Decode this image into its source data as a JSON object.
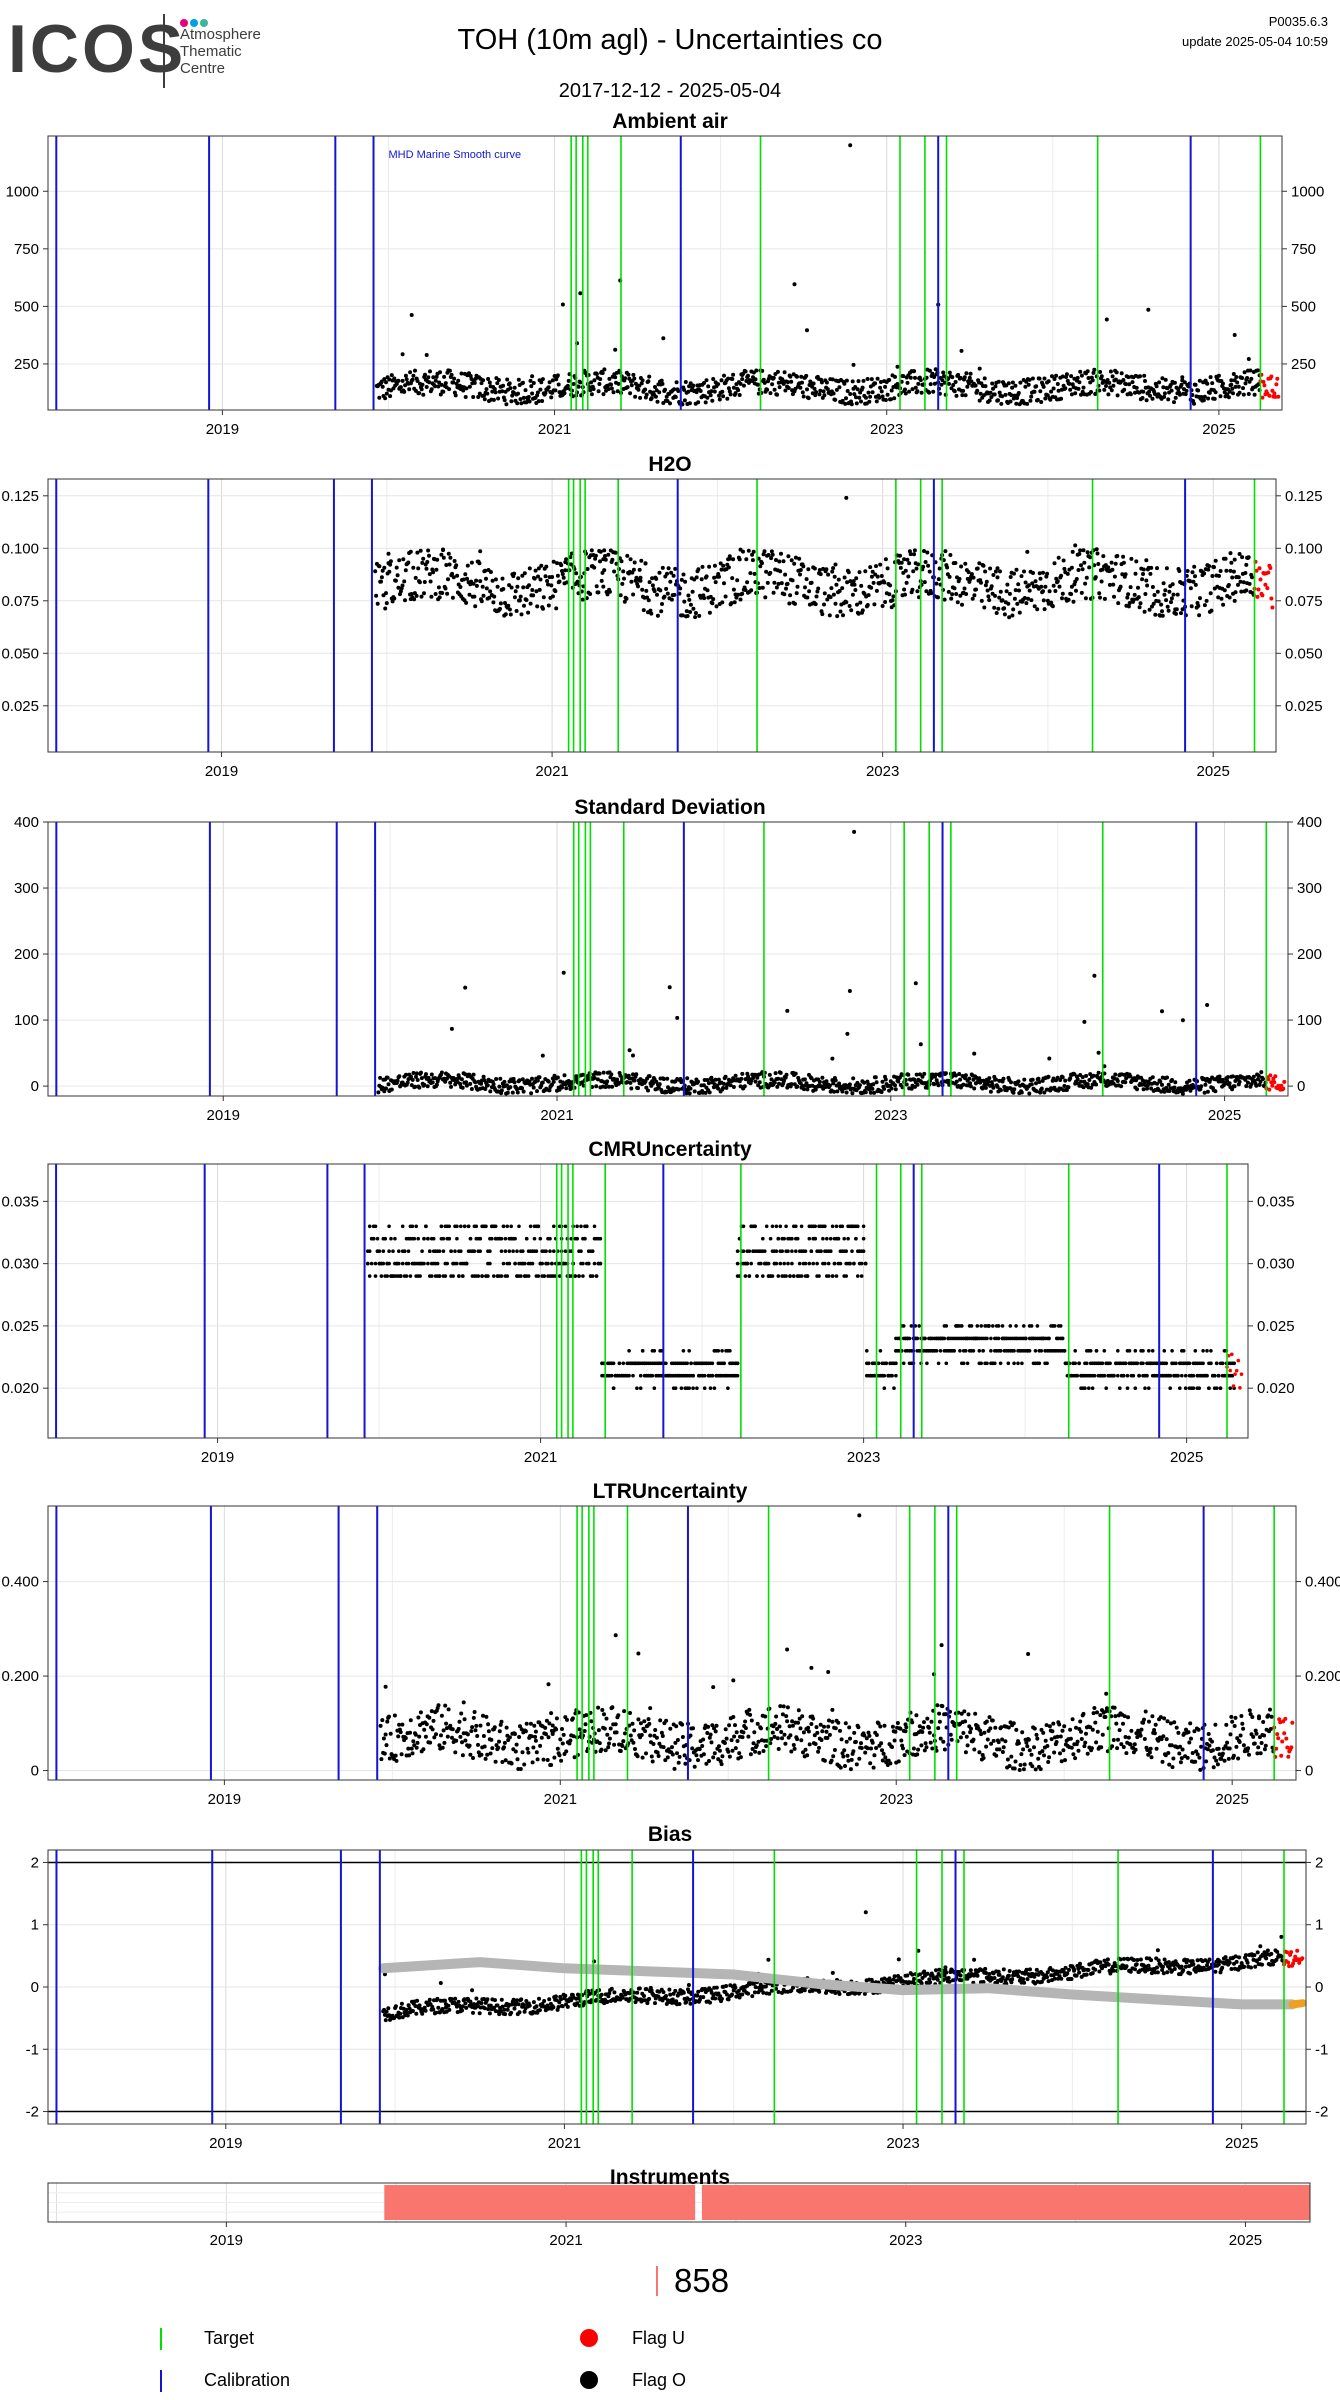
{
  "header": {
    "logo_text": "ICOS",
    "logo_sub": [
      "Atmosphere",
      "Thematic",
      "Centre"
    ],
    "logo_dot_colors": [
      "#e6007e",
      "#00a0e3",
      "#3cb4a0"
    ],
    "title": "TOH  (10m agl) - Uncertainties co",
    "date_range": "2017-12-12 - 2025-05-04",
    "version": "P0035.6.3",
    "update": "update  2025-05-04 10:59"
  },
  "colors": {
    "target": "#00e000",
    "calibration": "#1414d4",
    "flag_u": "#ff0000",
    "flag_o": "#000000",
    "smooth_curve": "#b5b5b5",
    "bias_recent": "#f0a020",
    "instrument_bar": "#f8766d",
    "hline": "#000000"
  },
  "chart_data": [
    {
      "type": "scatter",
      "title": "Ambient air",
      "annotation": "MHD Marine Smooth curve",
      "xlim": [
        2017.95,
        2025.38
      ],
      "xticks": [
        2019,
        2021,
        2023,
        2025
      ],
      "ylim": [
        50,
        1240
      ],
      "yticks": [
        250,
        500,
        750,
        1000
      ],
      "baseline": 150,
      "amplitude": 55,
      "drift": 0,
      "spike_max": 1200
    },
    {
      "type": "scatter",
      "title": "H2O",
      "xlim": [
        2017.95,
        2025.38
      ],
      "xticks": [
        2019,
        2021,
        2023,
        2025
      ],
      "ylim": [
        0.003,
        0.133
      ],
      "yticks": [
        0.025,
        0.05,
        0.075,
        0.1,
        0.125
      ],
      "baseline": 0.083,
      "amplitude": 0.012,
      "drift": 0,
      "spike_max": 0.124
    },
    {
      "type": "scatter",
      "title": "Standard Deviation",
      "xlim": [
        2017.95,
        2025.38
      ],
      "xticks": [
        2019,
        2021,
        2023,
        2025
      ],
      "ylim": [
        -15,
        400
      ],
      "yticks": [
        0,
        100,
        200,
        300,
        400
      ],
      "baseline": 5,
      "amplitude": 12,
      "drift": 0,
      "spike_max": 385
    },
    {
      "type": "scatter",
      "title": "CMRUncertainty",
      "xlim": [
        2017.95,
        2025.38
      ],
      "xticks": [
        2019,
        2021,
        2023,
        2025
      ],
      "ylim": [
        0.016,
        0.038
      ],
      "yticks": [
        0.02,
        0.025,
        0.03,
        0.035
      ],
      "levels": [
        {
          "from": 2019.93,
          "to": 2021.38,
          "center": 0.031,
          "spread": 0.0025
        },
        {
          "from": 2021.38,
          "to": 2022.22,
          "center": 0.0215,
          "spread": 0.0012
        },
        {
          "from": 2022.22,
          "to": 2023.02,
          "center": 0.031,
          "spread": 0.0025
        },
        {
          "from": 2023.02,
          "to": 2023.2,
          "center": 0.0215,
          "spread": 0.0012
        },
        {
          "from": 2023.2,
          "to": 2024.25,
          "center": 0.0235,
          "spread": 0.0015
        },
        {
          "from": 2024.25,
          "to": 2025.3,
          "center": 0.0215,
          "spread": 0.0012
        }
      ]
    },
    {
      "type": "scatter",
      "title": "LTRUncertainty",
      "xlim": [
        2017.95,
        2025.38
      ],
      "xticks": [
        2019,
        2021,
        2023,
        2025
      ],
      "ylim": [
        -0.02,
        0.56
      ],
      "yticks": [
        0.0,
        0.2,
        0.4
      ],
      "baseline": 0.07,
      "amplitude": 0.05,
      "drift": 0,
      "spike_max": 0.54
    },
    {
      "type": "scatter",
      "title": "Bias",
      "xlim": [
        2017.95,
        2025.38
      ],
      "xticks": [
        2019,
        2021,
        2023,
        2025
      ],
      "ylim": [
        -2.2,
        2.2
      ],
      "yticks": [
        -2,
        -1,
        0,
        1,
        2
      ],
      "hlines": [
        2,
        -2
      ],
      "baseline": -0.4,
      "amplitude": 0.12,
      "drift": 0.16,
      "spike_max": 1.2,
      "smooth": [
        [
          2019.93,
          0.3
        ],
        [
          2020.5,
          0.4
        ],
        [
          2021.0,
          0.3
        ],
        [
          2021.5,
          0.25
        ],
        [
          2022.0,
          0.2
        ],
        [
          2022.5,
          0.05
        ],
        [
          2023.0,
          -0.05
        ],
        [
          2023.5,
          -0.02
        ],
        [
          2024.0,
          -0.12
        ],
        [
          2024.5,
          -0.2
        ],
        [
          2025.0,
          -0.28
        ],
        [
          2025.3,
          -0.28
        ]
      ]
    }
  ],
  "markers": {
    "calibration_x": [
      2018.0,
      2018.92,
      2019.68,
      2019.91,
      2021.76,
      2023.31,
      2024.83
    ],
    "target_x": [
      2021.1,
      2021.13,
      2021.17,
      2021.2,
      2021.4,
      2022.24,
      2023.08,
      2023.23,
      2023.36,
      2024.27,
      2025.25
    ]
  },
  "instruments": {
    "title": "Instruments",
    "xticks": [
      2019,
      2021,
      2023,
      2025
    ],
    "bars": [
      {
        "from": 2019.93,
        "to": 2021.76
      },
      {
        "from": 2021.8,
        "to": 2025.38
      }
    ]
  },
  "count": "858",
  "legend": {
    "target": "Target",
    "calibration": "Calibration",
    "flag_u": "Flag U",
    "flag_o": "Flag O"
  }
}
